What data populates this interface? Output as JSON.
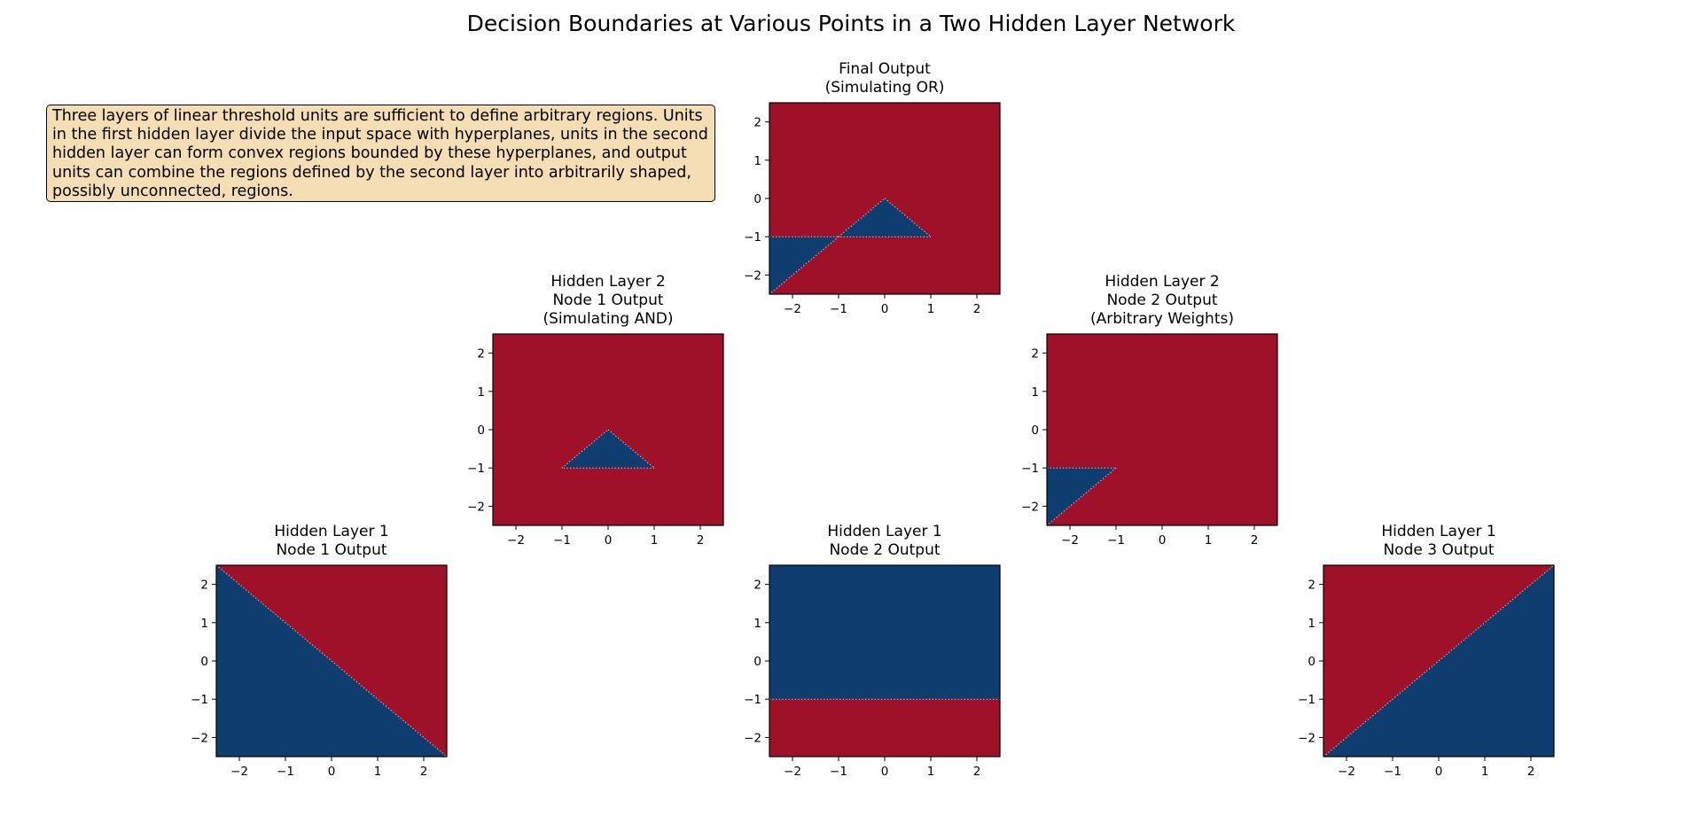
{
  "figure": {
    "title": "Decision Boundaries at Various Points in a Two Hidden Layer Network",
    "annotation": "Three layers of linear threshold units are sufficient to define arbitrary regions. Units in the first hidden layer divide the input space with hyperplanes, units in the second hidden layer can form convex regions bounded by these hyperplanes, and output units can combine the regions defined by the second layer into arbitrarily shaped, possibly unconnected, regions.",
    "colors": {
      "positive_region": "#9e1128",
      "negative_region": "#0e3d70",
      "annotation_background": "#f5deb3"
    }
  },
  "chart_data": [
    {
      "id": "final-output",
      "type": "heatmap",
      "title_lines": [
        "Final Output",
        "(Simulating OR)"
      ],
      "xlim": [
        -2.5,
        2.5
      ],
      "ylim": [
        -2.5,
        2.5
      ],
      "xticks": [
        -2,
        -1,
        0,
        1,
        2
      ],
      "yticks": [
        -2,
        -1,
        0,
        1,
        2
      ],
      "background_class": "positive",
      "regions": [
        {
          "class": "negative",
          "vertices": [
            [
              -1,
              -1
            ],
            [
              0,
              0
            ],
            [
              1,
              -1
            ]
          ]
        },
        {
          "class": "negative",
          "vertices": [
            [
              -2.5,
              -1
            ],
            [
              -1,
              -1
            ],
            [
              -2.5,
              -2.5
            ]
          ]
        }
      ]
    },
    {
      "id": "hidden2-node1",
      "type": "heatmap",
      "title_lines": [
        "Hidden Layer 2",
        "Node 1 Output",
        "(Simulating AND)"
      ],
      "xlim": [
        -2.5,
        2.5
      ],
      "ylim": [
        -2.5,
        2.5
      ],
      "xticks": [
        -2,
        -1,
        0,
        1,
        2
      ],
      "yticks": [
        -2,
        -1,
        0,
        1,
        2
      ],
      "background_class": "positive",
      "regions": [
        {
          "class": "negative",
          "vertices": [
            [
              -1,
              -1
            ],
            [
              0,
              0
            ],
            [
              1,
              -1
            ]
          ]
        }
      ]
    },
    {
      "id": "hidden2-node2",
      "type": "heatmap",
      "title_lines": [
        "Hidden Layer 2",
        "Node 2 Output",
        "(Arbitrary Weights)"
      ],
      "xlim": [
        -2.5,
        2.5
      ],
      "ylim": [
        -2.5,
        2.5
      ],
      "xticks": [
        -2,
        -1,
        0,
        1,
        2
      ],
      "yticks": [
        -2,
        -1,
        0,
        1,
        2
      ],
      "background_class": "positive",
      "regions": [
        {
          "class": "negative",
          "vertices": [
            [
              -2.5,
              -1
            ],
            [
              -1,
              -1
            ],
            [
              -2.5,
              -2.5
            ]
          ]
        }
      ]
    },
    {
      "id": "hidden1-node1",
      "type": "heatmap",
      "title_lines": [
        "Hidden Layer 1",
        "Node 1 Output"
      ],
      "xlim": [
        -2.5,
        2.5
      ],
      "ylim": [
        -2.5,
        2.5
      ],
      "xticks": [
        -2,
        -1,
        0,
        1,
        2
      ],
      "yticks": [
        -2,
        -1,
        0,
        1,
        2
      ],
      "background_class": "positive",
      "regions": [
        {
          "class": "negative",
          "vertices": [
            [
              -2.5,
              2.5
            ],
            [
              2.5,
              -2.5
            ],
            [
              -2.5,
              -2.5
            ]
          ]
        }
      ]
    },
    {
      "id": "hidden1-node2",
      "type": "heatmap",
      "title_lines": [
        "Hidden Layer 1",
        "Node 2 Output"
      ],
      "xlim": [
        -2.5,
        2.5
      ],
      "ylim": [
        -2.5,
        2.5
      ],
      "xticks": [
        -2,
        -1,
        0,
        1,
        2
      ],
      "yticks": [
        -2,
        -1,
        0,
        1,
        2
      ],
      "background_class": "negative",
      "regions": [
        {
          "class": "positive",
          "vertices": [
            [
              -2.5,
              -1
            ],
            [
              2.5,
              -1
            ],
            [
              2.5,
              -2.5
            ],
            [
              -2.5,
              -2.5
            ]
          ]
        }
      ]
    },
    {
      "id": "hidden1-node3",
      "type": "heatmap",
      "title_lines": [
        "Hidden Layer 1",
        "Node 3 Output"
      ],
      "xlim": [
        -2.5,
        2.5
      ],
      "ylim": [
        -2.5,
        2.5
      ],
      "xticks": [
        -2,
        -1,
        0,
        1,
        2
      ],
      "yticks": [
        -2,
        -1,
        0,
        1,
        2
      ],
      "background_class": "positive",
      "regions": [
        {
          "class": "negative",
          "vertices": [
            [
              -2.5,
              -2.5
            ],
            [
              2.5,
              2.5
            ],
            [
              2.5,
              -2.5
            ]
          ]
        }
      ]
    }
  ]
}
